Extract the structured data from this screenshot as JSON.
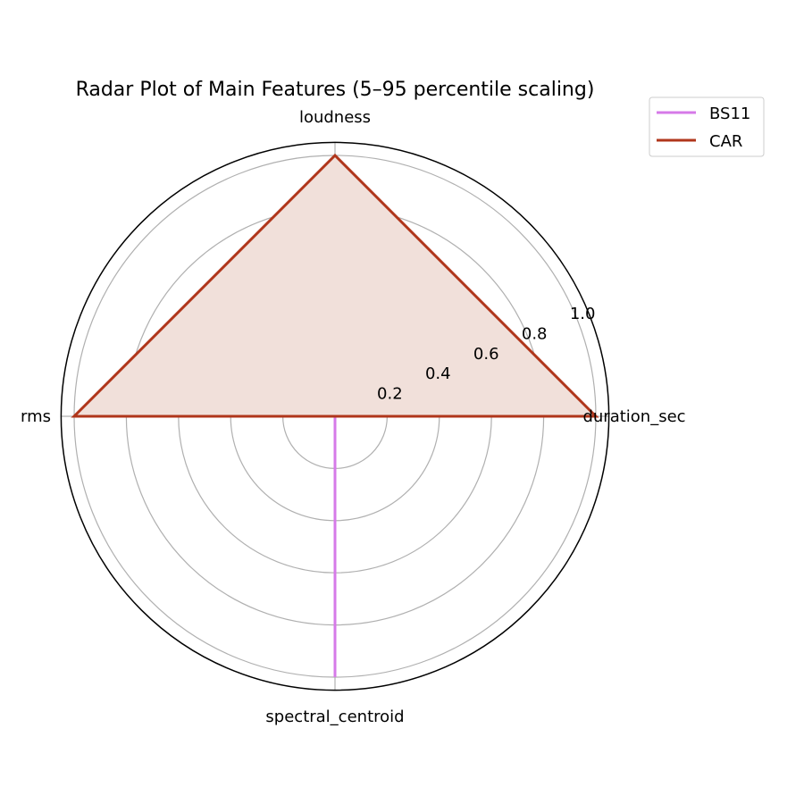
{
  "chart_data": {
    "type": "radar",
    "title": "Radar Plot of Main Features (5–95 percentile scaling)",
    "categories": [
      "duration_sec",
      "loudness",
      "rms",
      "spectral_centroid"
    ],
    "series": [
      {
        "name": "BS11",
        "values": [
          0,
          0,
          0,
          1.0
        ],
        "color": "#d67ae8",
        "fill": false
      },
      {
        "name": "CAR",
        "values": [
          1.0,
          1.0,
          1.0,
          0
        ],
        "color": "#b0361b",
        "fill": true,
        "fill_color": "#f1e0da"
      }
    ],
    "radial_ticks": [
      0.2,
      0.4,
      0.6,
      0.8,
      1.0
    ],
    "radial_tick_labels": [
      "0.2",
      "0.4",
      "0.6",
      "0.8",
      "1.0"
    ],
    "rlim": [
      0,
      1.05
    ],
    "grid": true,
    "legend_position": "upper right, outside"
  }
}
